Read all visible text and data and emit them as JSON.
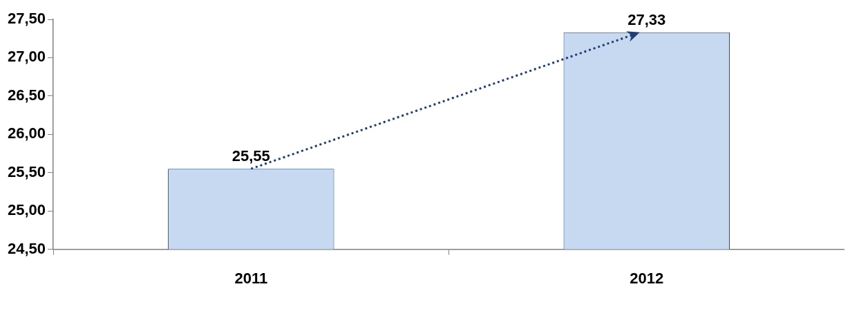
{
  "chart_data": {
    "type": "bar",
    "categories": [
      "2011",
      "2012"
    ],
    "series": [
      {
        "color": "#c6d9f0",
        "values": [
          25.55,
          27.33
        ],
        "value_labels": [
          "25,55",
          "27,33"
        ]
      }
    ],
    "ylim": [
      24.5,
      27.5
    ],
    "yticks": [
      {
        "value": 24.5,
        "label": "24,50"
      },
      {
        "value": 25,
        "label": "25,00"
      },
      {
        "value": 25.5,
        "label": "25,50"
      },
      {
        "value": 26,
        "label": "26,00"
      },
      {
        "value": 26.5,
        "label": "26,50"
      },
      {
        "value": 27,
        "label": "27,00"
      },
      {
        "value": 27.5,
        "label": "27,50"
      }
    ],
    "grid": false,
    "legend": false
  }
}
